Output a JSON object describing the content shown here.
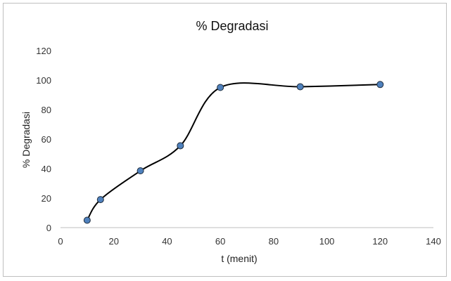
{
  "chart_data": {
    "type": "scatter",
    "title": "% Degradasi",
    "xlabel": "t (menit)",
    "ylabel": "% Degradasi",
    "xlim": [
      0,
      140
    ],
    "ylim": [
      0,
      120
    ],
    "xticks": [
      0,
      20,
      40,
      60,
      80,
      100,
      120,
      140
    ],
    "yticks": [
      0,
      20,
      40,
      60,
      80,
      100,
      120
    ],
    "grid": false,
    "smoothed_line": true,
    "series": [
      {
        "x": [
          10,
          15,
          30,
          45,
          60,
          90,
          120
        ],
        "y": [
          5,
          19,
          38.5,
          55.5,
          95,
          95.5,
          97
        ],
        "marker_color": "#4f81bd",
        "line_color": "#000000"
      }
    ]
  }
}
